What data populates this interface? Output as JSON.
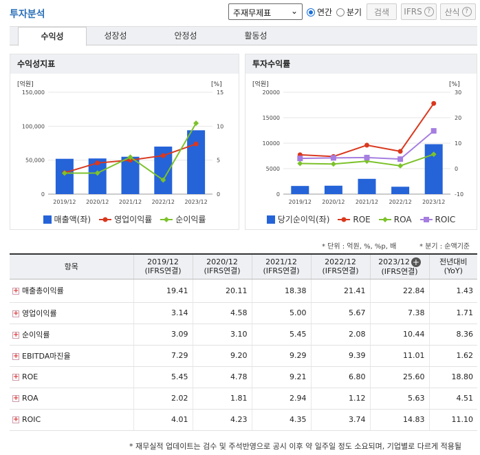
{
  "header": {
    "title": "투자분석",
    "select_value": "주재무제표",
    "radio_annual": "연간",
    "radio_quarter": "분기",
    "search_button": "검색",
    "ifrs_button": "IFRS",
    "formula_button": "산식"
  },
  "tabs": [
    "수익성",
    "성장성",
    "안정성",
    "활동성"
  ],
  "left_chart": {
    "title": "수익성지표",
    "left_unit": "[억원]",
    "right_unit": "[%]",
    "left_ticks": [
      "150,000",
      "100,000",
      "50,000",
      "0"
    ],
    "right_ticks": [
      "15",
      "10",
      "5",
      "0"
    ],
    "legend_bar": "매출액(좌)",
    "legend_l1": "영업이익률",
    "legend_l2": "순이익률"
  },
  "right_chart": {
    "title": "투자수익률",
    "left_unit": "[억원]",
    "right_unit": "[%]",
    "left_ticks": [
      "20000",
      "15000",
      "10000",
      "5000",
      "0"
    ],
    "right_ticks": [
      "30",
      "20",
      "10",
      "0",
      "-10"
    ],
    "legend_bar": "당기순이익(좌)",
    "legend_l1": "ROE",
    "legend_l2": "ROA",
    "legend_l3": "ROIC"
  },
  "chart_data": [
    {
      "type": "bar+line",
      "title": "수익성지표",
      "categories": [
        "2019/12",
        "2020/12",
        "2021/12",
        "2022/12",
        "2023/12"
      ],
      "ylim_left": [
        0,
        150000
      ],
      "ylim_right": [
        0,
        15
      ],
      "series": [
        {
          "name": "매출액(좌)",
          "axis": "left",
          "kind": "bar",
          "color": "#2563d8",
          "values": [
            52000,
            52500,
            55000,
            70000,
            94000
          ]
        },
        {
          "name": "영업이익률",
          "axis": "right",
          "kind": "line",
          "color": "#d9381e",
          "values": [
            3.14,
            4.58,
            5.0,
            5.67,
            7.38
          ]
        },
        {
          "name": "순이익률",
          "axis": "right",
          "kind": "line",
          "color": "#7cc22a",
          "values": [
            3.09,
            3.1,
            5.45,
            2.08,
            10.44
          ]
        }
      ]
    },
    {
      "type": "bar+line",
      "title": "투자수익률",
      "categories": [
        "2019/12",
        "2020/12",
        "2021/12",
        "2022/12",
        "2023/12"
      ],
      "ylim_left": [
        0,
        20000
      ],
      "ylim_right": [
        -10,
        30
      ],
      "series": [
        {
          "name": "당기순이익(좌)",
          "axis": "left",
          "kind": "bar",
          "color": "#2563d8",
          "values": [
            1600,
            1650,
            3000,
            1450,
            9800
          ]
        },
        {
          "name": "ROE",
          "axis": "right",
          "kind": "line",
          "color": "#d9381e",
          "values": [
            5.45,
            4.78,
            9.21,
            6.8,
            25.6
          ]
        },
        {
          "name": "ROA",
          "axis": "right",
          "kind": "line",
          "color": "#7cc22a",
          "values": [
            2.02,
            1.81,
            2.94,
            1.12,
            5.63
          ]
        },
        {
          "name": "ROIC",
          "axis": "right",
          "kind": "line",
          "color": "#a57ee0",
          "values": [
            4.01,
            4.23,
            4.35,
            3.74,
            14.83
          ]
        }
      ]
    }
  ],
  "notes": {
    "unit": "* 단위 : 억원, %, %p, 배",
    "quarter": "* 분기 : 순액기준"
  },
  "table": {
    "header_item": "항목",
    "columns": [
      {
        "year": "2019/12",
        "basis": "(IFRS연결)"
      },
      {
        "year": "2020/12",
        "basis": "(IFRS연결)"
      },
      {
        "year": "2021/12",
        "basis": "(IFRS연결)"
      },
      {
        "year": "2022/12",
        "basis": "(IFRS연결)"
      },
      {
        "year": "2023/12",
        "basis": "(IFRS연결)"
      }
    ],
    "yoy_label": "전년대비",
    "yoy_sub": "(YoY)",
    "rows": [
      {
        "name": "매출총이익률",
        "values": [
          "19.41",
          "20.11",
          "18.38",
          "21.41",
          "22.84",
          "1.43"
        ]
      },
      {
        "name": "영업이익률",
        "values": [
          "3.14",
          "4.58",
          "5.00",
          "5.67",
          "7.38",
          "1.71"
        ]
      },
      {
        "name": "순이익률",
        "values": [
          "3.09",
          "3.10",
          "5.45",
          "2.08",
          "10.44",
          "8.36"
        ]
      },
      {
        "name": "EBITDA마진율",
        "values": [
          "7.29",
          "9.20",
          "9.29",
          "9.39",
          "11.01",
          "1.62"
        ]
      },
      {
        "name": "ROE",
        "values": [
          "5.45",
          "4.78",
          "9.21",
          "6.80",
          "25.60",
          "18.80"
        ]
      },
      {
        "name": "ROA",
        "values": [
          "2.02",
          "1.81",
          "2.94",
          "1.12",
          "5.63",
          "4.51"
        ]
      },
      {
        "name": "ROIC",
        "values": [
          "4.01",
          "4.23",
          "4.35",
          "3.74",
          "14.83",
          "11.10"
        ]
      }
    ]
  },
  "footnote": "* 재무실적 업데이트는 검수 및 주석반영으로 공시 이후 약 일주일 정도 소요되며, 기업별로 다르게 적용될"
}
